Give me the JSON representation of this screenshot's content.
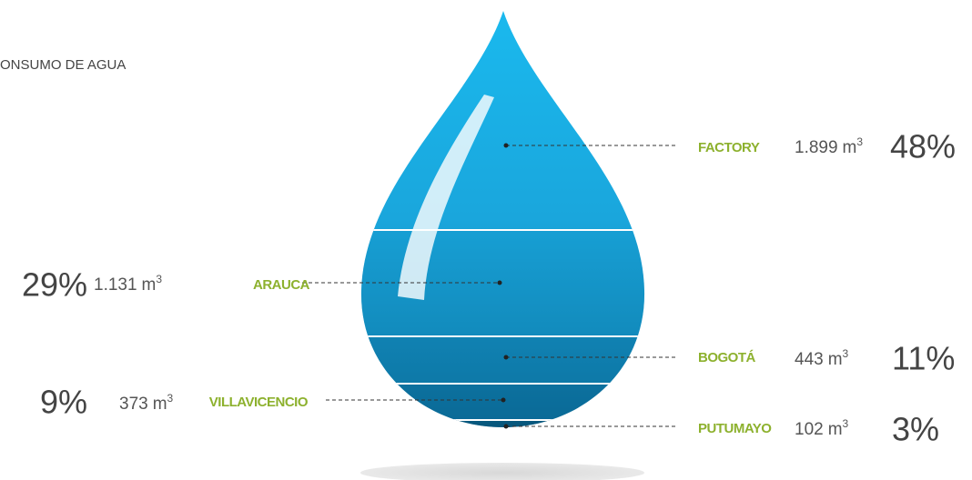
{
  "title": "ONSUMO DE AGUA",
  "segments": [
    {
      "name": "FACTORY",
      "volume": "1.899",
      "unit": "m",
      "exponent": "3",
      "percent": "48%"
    },
    {
      "name": "ARAUCA",
      "volume": "1.131",
      "unit": "m",
      "exponent": "3",
      "percent": "29%"
    },
    {
      "name": "BOGOTÁ",
      "volume": "443",
      "unit": "m",
      "exponent": "3",
      "percent": "11%"
    },
    {
      "name": "VILLAVICENCIO",
      "volume": "373",
      "unit": "m",
      "exponent": "3",
      "percent": "9%"
    },
    {
      "name": "PUTUMAYO",
      "volume": "102",
      "unit": "m",
      "exponent": "3",
      "percent": "3%"
    }
  ]
}
